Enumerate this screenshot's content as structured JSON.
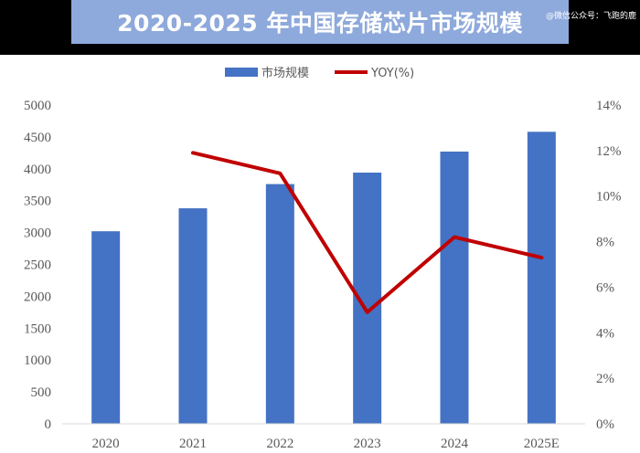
{
  "header": {
    "title": "2020-2025 年中国存储芯片市场规模",
    "watermark": "@微信公众号：飞跑的鹿"
  },
  "chart_data": {
    "type": "bar",
    "categories": [
      "2020",
      "2021",
      "2022",
      "2023",
      "2024",
      "2025E"
    ],
    "series": [
      {
        "name": "市场规模",
        "type": "bar",
        "axis": "left",
        "color": "#4472C4",
        "values": [
          3020,
          3380,
          3760,
          3940,
          4270,
          4580
        ]
      },
      {
        "name": "YOY(%)",
        "type": "line",
        "axis": "right",
        "color": "#C00000",
        "values": [
          null,
          11.9,
          11.0,
          4.9,
          8.2,
          7.3
        ]
      }
    ],
    "y_left": {
      "min": 0,
      "max": 5000,
      "step": 500,
      "ticks": [
        "0",
        "500",
        "1000",
        "1500",
        "2000",
        "2500",
        "3000",
        "3500",
        "4000",
        "4500",
        "5000"
      ]
    },
    "y_right": {
      "min": 0,
      "max": 14,
      "step": 2,
      "ticks": [
        "0%",
        "2%",
        "4%",
        "6%",
        "8%",
        "10%",
        "12%",
        "14%"
      ]
    },
    "legend_position": "top-center",
    "grid": false
  }
}
